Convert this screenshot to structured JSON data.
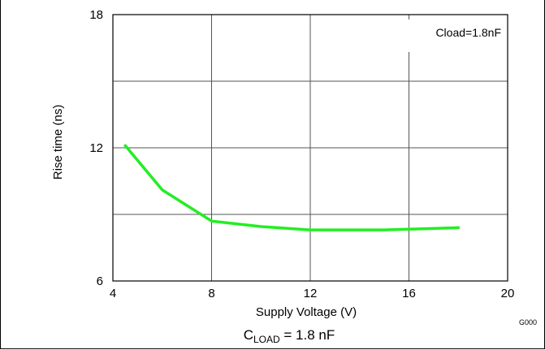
{
  "chart_data": {
    "type": "line",
    "xlabel": "Supply Voltage (V)",
    "ylabel": "Rise time (ns)",
    "xlim": [
      4,
      20
    ],
    "ylim": [
      6,
      18
    ],
    "x_ticks": [
      4,
      8,
      12,
      16,
      20
    ],
    "y_ticks": [
      6,
      12,
      18
    ],
    "grid": true,
    "legend_text": "Cload=1.8nF",
    "legend_placement": "top-right",
    "figure_id": "G000",
    "caption_prefix": "C",
    "caption_subscript": "LOAD",
    "caption_suffix": " = 1.8 nF",
    "series": [
      {
        "color": "#22ee22",
        "x": [
          4.5,
          6,
          8,
          10,
          12,
          15,
          18
        ],
        "y": [
          12.1,
          10.1,
          8.7,
          8.45,
          8.3,
          8.3,
          8.4
        ]
      }
    ]
  }
}
